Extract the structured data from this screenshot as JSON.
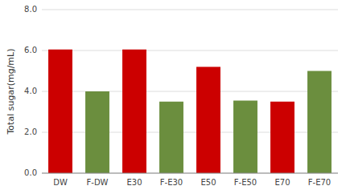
{
  "chart_data": {
    "type": "bar",
    "categories": [
      "DW",
      "F-DW",
      "E30",
      "F-E30",
      "E50",
      "F-E50",
      "E70",
      "F-E70"
    ],
    "values": [
      6.05,
      4.0,
      6.05,
      3.5,
      5.2,
      3.55,
      3.5,
      5.0
    ],
    "colors": [
      "#cc0000",
      "#6b8e3e",
      "#cc0000",
      "#6b8e3e",
      "#cc0000",
      "#6b8e3e",
      "#cc0000",
      "#6b8e3e"
    ],
    "ylabel": "Total sugar(mg/mL)",
    "ylim": [
      0,
      8.0
    ],
    "yticks": [
      {
        "value": 0.0,
        "label": "0.0"
      },
      {
        "value": 2.0,
        "label": "2.0"
      },
      {
        "value": 4.0,
        "label": "4.0"
      },
      {
        "value": 6.0,
        "label": "6.0"
      },
      {
        "value": 8.0,
        "label": "8.0"
      }
    ],
    "grid": true
  }
}
